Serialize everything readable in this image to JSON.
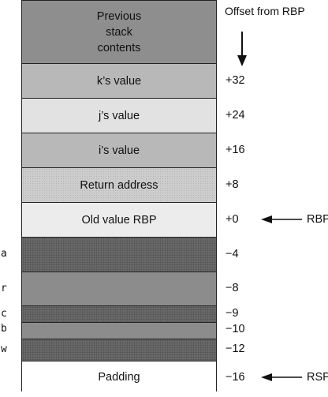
{
  "header": {
    "offset_title": "Offset from RBP"
  },
  "stack": [
    {
      "label": "Previous\nstack\ncontents",
      "offset": "",
      "var": "",
      "fill": "dark"
    },
    {
      "label": "k’s value",
      "offset": "+32",
      "var": "",
      "fill": "med"
    },
    {
      "label": "j’s value",
      "offset": "+24",
      "var": "",
      "fill": "light"
    },
    {
      "label": "i’s value",
      "offset": "+16",
      "var": "",
      "fill": "med"
    },
    {
      "label": "Return address",
      "offset": "+8",
      "var": "",
      "fill": "dotted"
    },
    {
      "label": "Old value RBP",
      "offset": "+0",
      "var": "",
      "fill": "pale"
    },
    {
      "label": "",
      "offset": "−4",
      "var": "a",
      "fill": "dense"
    },
    {
      "label": "",
      "offset": "−8",
      "var": "r",
      "fill": "gray"
    },
    {
      "label": "",
      "offset": "−9",
      "var": "c",
      "fill": "dense"
    },
    {
      "label": "",
      "offset": "−10",
      "var": "b",
      "fill": "gray"
    },
    {
      "label": "",
      "offset": "−12",
      "var": "w",
      "fill": "dense"
    },
    {
      "label": "Padding",
      "offset": "−16",
      "var": "",
      "fill": "white"
    }
  ],
  "pointers": {
    "rbp": "RBP",
    "rsp": "RSP"
  }
}
